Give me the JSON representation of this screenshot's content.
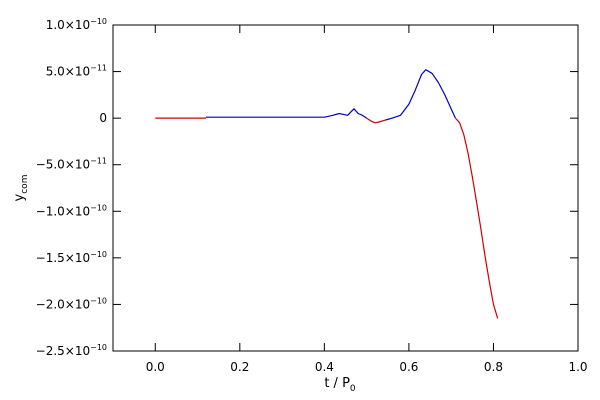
{
  "chart_data": {
    "type": "line",
    "xlabel": "t / P0",
    "xlabel_parts": {
      "main": "t / P",
      "sub": "0"
    },
    "ylabel": "ycom",
    "ylabel_parts": {
      "main": "y",
      "sub": "com"
    },
    "xlim": [
      -0.1,
      1.0
    ],
    "ylim": [
      -2.5e-10,
      1e-10
    ],
    "grid": false,
    "legend": "none",
    "x_ticks": [
      {
        "value": 0.0,
        "label": "0.0"
      },
      {
        "value": 0.2,
        "label": "0.2"
      },
      {
        "value": 0.4,
        "label": "0.4"
      },
      {
        "value": 0.6,
        "label": "0.6"
      },
      {
        "value": 0.8,
        "label": "0.8"
      },
      {
        "value": 1.0,
        "label": "1.0"
      }
    ],
    "y_ticks": [
      {
        "value": 1e-10,
        "mant": "1.0×10",
        "exp": "−10"
      },
      {
        "value": 5e-11,
        "mant": "5.0×10",
        "exp": "−11"
      },
      {
        "value": 0,
        "mant": "0",
        "exp": ""
      },
      {
        "value": -5e-11,
        "mant": "−5.0×10",
        "exp": "−11"
      },
      {
        "value": -1e-10,
        "mant": "−1.0×10",
        "exp": "−10"
      },
      {
        "value": -1.5e-10,
        "mant": "−1.5×10",
        "exp": "−10"
      },
      {
        "value": -2e-10,
        "mant": "−2.0×10",
        "exp": "−10"
      },
      {
        "value": -2.5e-10,
        "mant": "−2.5×10",
        "exp": "−10"
      }
    ],
    "series": [
      {
        "color": "#d00000",
        "points": [
          [
            0.0,
            0.0
          ],
          [
            0.12,
            0.0
          ]
        ]
      },
      {
        "color": "#0000cc",
        "points": [
          [
            0.12,
            1e-12
          ],
          [
            0.4,
            1e-12
          ],
          [
            0.42,
            3e-12
          ],
          [
            0.435,
            5e-12
          ],
          [
            0.445,
            4e-12
          ],
          [
            0.455,
            3e-12
          ],
          [
            0.47,
            1e-11
          ],
          [
            0.48,
            5e-12
          ],
          [
            0.49,
            3e-12
          ],
          [
            0.5,
            0.0
          ]
        ]
      },
      {
        "color": "#d00000",
        "points": [
          [
            0.5,
            0.0
          ],
          [
            0.51,
            -3e-12
          ],
          [
            0.52,
            -5e-12
          ],
          [
            0.53,
            -4e-12
          ],
          [
            0.545,
            -2e-12
          ]
        ]
      },
      {
        "color": "#0000cc",
        "points": [
          [
            0.545,
            -2e-12
          ],
          [
            0.56,
            0.0
          ],
          [
            0.58,
            3e-12
          ],
          [
            0.6,
            1.5e-11
          ],
          [
            0.615,
            3e-11
          ],
          [
            0.63,
            4.7e-11
          ],
          [
            0.64,
            5.2e-11
          ],
          [
            0.655,
            4.8e-11
          ],
          [
            0.67,
            3.8e-11
          ],
          [
            0.685,
            2.5e-11
          ],
          [
            0.7,
            1e-11
          ],
          [
            0.71,
            0.0
          ]
        ]
      },
      {
        "color": "#d00000",
        "points": [
          [
            0.71,
            0.0
          ],
          [
            0.72,
            -5e-12
          ],
          [
            0.73,
            -1.8e-11
          ],
          [
            0.74,
            -3.8e-11
          ],
          [
            0.75,
            -6.3e-11
          ],
          [
            0.76,
            -9e-11
          ],
          [
            0.77,
            -1.18e-10
          ],
          [
            0.78,
            -1.48e-10
          ],
          [
            0.79,
            -1.75e-10
          ],
          [
            0.8,
            -2e-10
          ],
          [
            0.81,
            -2.15e-10
          ]
        ]
      }
    ]
  }
}
